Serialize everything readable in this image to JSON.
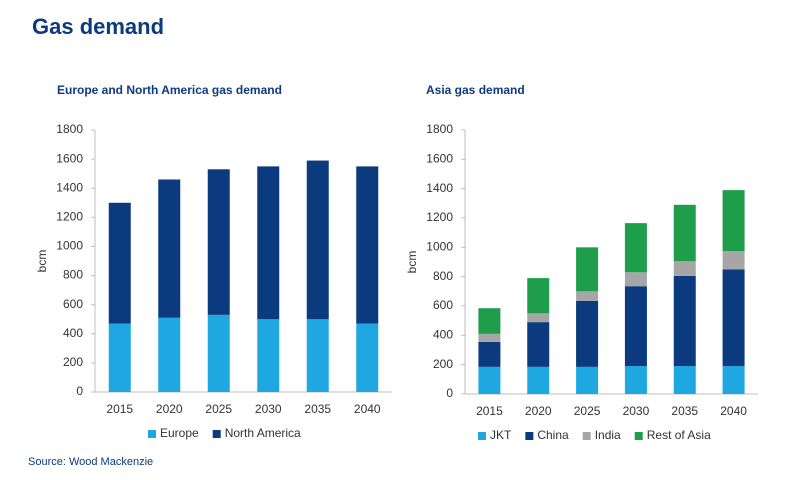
{
  "title": "Gas demand",
  "source": "Source: Wood Mackenzie",
  "chart_data": [
    {
      "type": "bar",
      "stacked": true,
      "title": "Europe and North America gas demand",
      "y_label": "bcm",
      "categories": [
        "2015",
        "2020",
        "2025",
        "2030",
        "2035",
        "2040"
      ],
      "series": [
        {
          "name": "Europe",
          "color": "#1ea7e1",
          "values": [
            470,
            510,
            530,
            500,
            500,
            470
          ]
        },
        {
          "name": "North America",
          "color": "#0b3a7e",
          "values": [
            830,
            950,
            1000,
            1050,
            1090,
            1080
          ]
        }
      ],
      "ylim": [
        0,
        1800
      ],
      "yticks": [
        0,
        200,
        400,
        600,
        800,
        1000,
        1200,
        1400,
        1600,
        1800
      ]
    },
    {
      "type": "bar",
      "stacked": true,
      "title": "Asia gas demand",
      "y_label": "bcm",
      "categories": [
        "2015",
        "2020",
        "2025",
        "2030",
        "2035",
        "2040"
      ],
      "series": [
        {
          "name": "JKT",
          "color": "#1ea7e1",
          "values": [
            185,
            185,
            185,
            190,
            190,
            190
          ]
        },
        {
          "name": "China",
          "color": "#0b3a7e",
          "values": [
            170,
            305,
            450,
            545,
            615,
            660
          ]
        },
        {
          "name": "India",
          "color": "#a6a6a6",
          "values": [
            55,
            60,
            65,
            95,
            100,
            125
          ]
        },
        {
          "name": "Rest of Asia",
          "color": "#1e9e4a",
          "values": [
            175,
            240,
            300,
            335,
            385,
            415
          ]
        }
      ],
      "ylim": [
        0,
        1800
      ],
      "yticks": [
        0,
        200,
        400,
        600,
        800,
        1000,
        1200,
        1400,
        1600,
        1800
      ]
    }
  ]
}
